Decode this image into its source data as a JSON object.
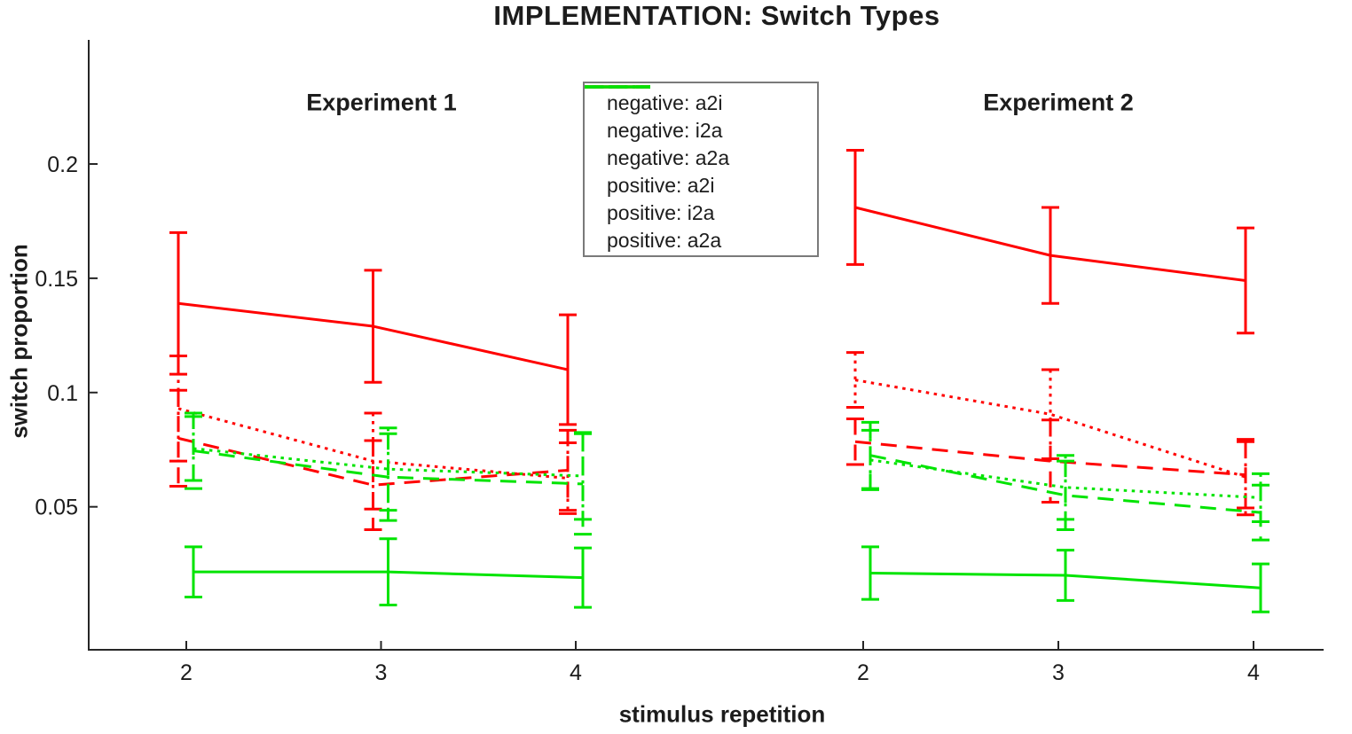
{
  "chart_data": {
    "type": "line",
    "title": "IMPLEMENTATION: Switch Types",
    "xlabel": "stimulus repetition",
    "ylabel": "switch proportion",
    "x_tick_labels": [
      "2",
      "3",
      "4"
    ],
    "y_ticks": [
      0.05,
      0.1,
      0.15,
      0.2
    ],
    "y_tick_labels": [
      "0.05",
      "0.1",
      "0.15",
      "0.2"
    ],
    "ylim": [
      -0.013,
      0.254
    ],
    "grid": false,
    "legend_position": "top-center",
    "colors": {
      "negative": "#ff0000",
      "positive": "#00e400",
      "axis": "#262626",
      "text": "#1c1c1c"
    },
    "legend": [
      {
        "label": "negative: a2i",
        "color": "#ff0000",
        "style": "dashed"
      },
      {
        "label": "negative: i2a",
        "color": "#ff0000",
        "style": "dotted"
      },
      {
        "label": "negative: a2a",
        "color": "#ff0000",
        "style": "solid"
      },
      {
        "label": "positive: a2i",
        "color": "#00e400",
        "style": "dashed"
      },
      {
        "label": "positive: i2a",
        "color": "#00e400",
        "style": "dotted"
      },
      {
        "label": "positive: a2a",
        "color": "#00e400",
        "style": "solid"
      }
    ],
    "panels": [
      {
        "title": "Experiment 1",
        "x": [
          2,
          3,
          4
        ],
        "series": [
          {
            "name": "negative: a2i",
            "group": "negative",
            "style": "dashed",
            "values": [
              0.08,
              0.0595,
              0.066
            ],
            "errors": [
              0.021,
              0.0195,
              0.0175
            ]
          },
          {
            "name": "negative: i2a",
            "group": "negative",
            "style": "dotted",
            "values": [
              0.093,
              0.07,
              0.0625
            ],
            "errors": [
              0.023,
              0.021,
              0.0155
            ]
          },
          {
            "name": "negative: a2a",
            "group": "negative",
            "style": "solid",
            "values": [
              0.139,
              0.129,
              0.11
            ],
            "errors": [
              0.031,
              0.0245,
              0.024
            ]
          },
          {
            "name": "positive: a2i",
            "group": "positive",
            "style": "dashed",
            "values": [
              0.0745,
              0.063,
              0.06
            ],
            "errors": [
              0.0165,
              0.019,
              0.022
            ]
          },
          {
            "name": "positive: i2a",
            "group": "positive",
            "style": "dotted",
            "values": [
              0.0755,
              0.0665,
              0.0635
            ],
            "errors": [
              0.014,
              0.018,
              0.019
            ]
          },
          {
            "name": "positive: a2a",
            "group": "positive",
            "style": "solid",
            "values": [
              0.0215,
              0.0215,
              0.019
            ],
            "errors": [
              0.011,
              0.0145,
              0.013
            ]
          }
        ]
      },
      {
        "title": "Experiment 2",
        "x": [
          2,
          3,
          4
        ],
        "series": [
          {
            "name": "negative: a2i",
            "group": "negative",
            "style": "dashed",
            "values": [
              0.0785,
              0.07,
              0.064
            ],
            "errors": [
              0.01,
              0.018,
              0.0145
            ]
          },
          {
            "name": "negative: i2a",
            "group": "negative",
            "style": "dotted",
            "values": [
              0.1055,
              0.0905,
              0.063
            ],
            "errors": [
              0.012,
              0.0195,
              0.0165
            ]
          },
          {
            "name": "negative: a2a",
            "group": "negative",
            "style": "solid",
            "values": [
              0.181,
              0.16,
              0.149
            ],
            "errors": [
              0.025,
              0.021,
              0.023
            ]
          },
          {
            "name": "positive: a2i",
            "group": "positive",
            "style": "dashed",
            "values": [
              0.0725,
              0.055,
              0.0475
            ],
            "errors": [
              0.0145,
              0.015,
              0.012
            ]
          },
          {
            "name": "positive: i2a",
            "group": "positive",
            "style": "dotted",
            "values": [
              0.0705,
              0.0585,
              0.054
            ],
            "errors": [
              0.013,
              0.014,
              0.0105
            ]
          },
          {
            "name": "positive: a2a",
            "group": "positive",
            "style": "solid",
            "values": [
              0.021,
              0.02,
              0.0145
            ],
            "errors": [
              0.0115,
              0.011,
              0.0105
            ]
          }
        ]
      }
    ]
  }
}
